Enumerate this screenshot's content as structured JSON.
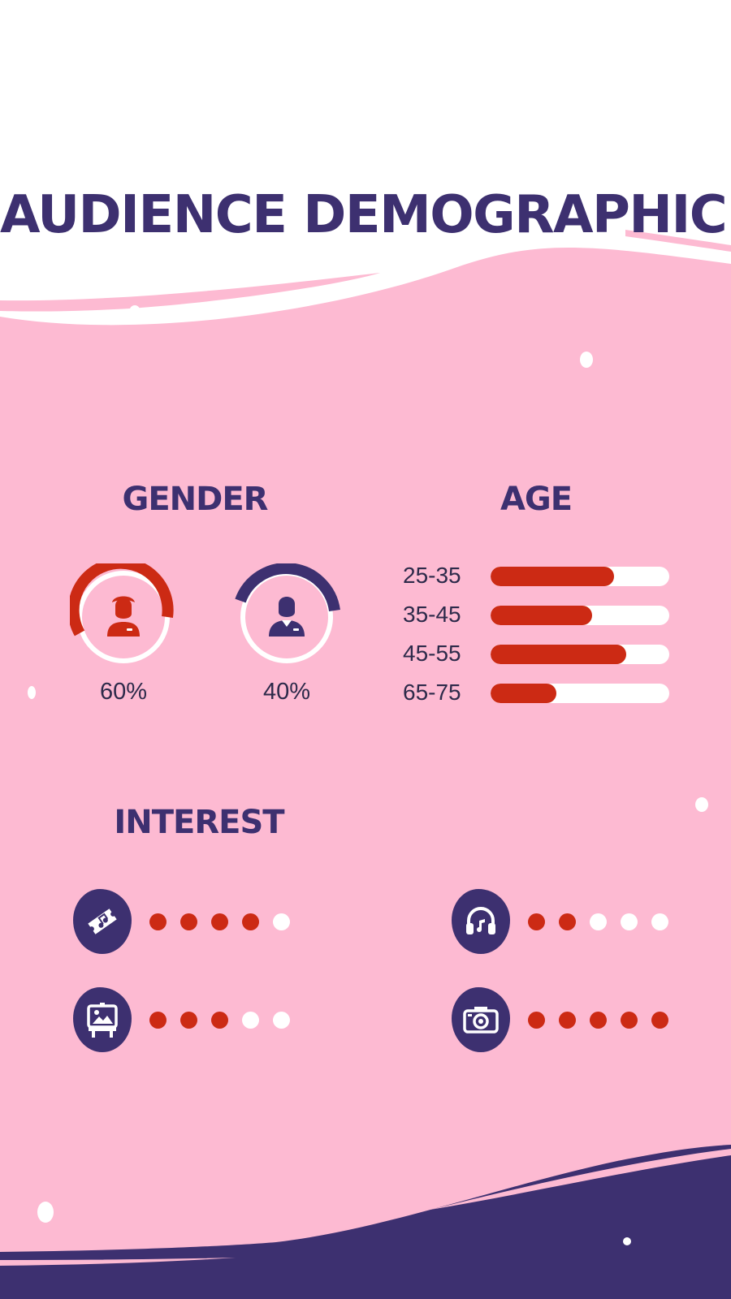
{
  "title": "AUDIENCE DEMOGRAPHICS",
  "colors": {
    "accent_red": "#cc2a14",
    "navy": "#3d3070",
    "pink_background": "#fdbad2",
    "track_white": "#ffffff"
  },
  "gender": {
    "heading": "GENDER",
    "items": [
      {
        "icon": "woman-avatar-icon",
        "percent_label": "60%",
        "value": 60,
        "color": "#cc2a14"
      },
      {
        "icon": "man-avatar-icon",
        "percent_label": "40%",
        "value": 40,
        "color": "#3d3070"
      }
    ]
  },
  "age": {
    "heading": "AGE",
    "groups": [
      {
        "label": "25-35",
        "fill": 0.69
      },
      {
        "label": "35-45",
        "fill": 0.57
      },
      {
        "label": "45-55",
        "fill": 0.76
      },
      {
        "label": "65-75",
        "fill": 0.37
      }
    ]
  },
  "interest": {
    "heading": "INTEREST",
    "items": [
      {
        "icon": "ticket-icon",
        "rating": 4,
        "max": 5
      },
      {
        "icon": "headphones-icon",
        "rating": 2,
        "max": 5
      },
      {
        "icon": "easel-painting-icon",
        "rating": 3,
        "max": 5
      },
      {
        "icon": "camera-icon",
        "rating": 5,
        "max": 5
      }
    ]
  }
}
